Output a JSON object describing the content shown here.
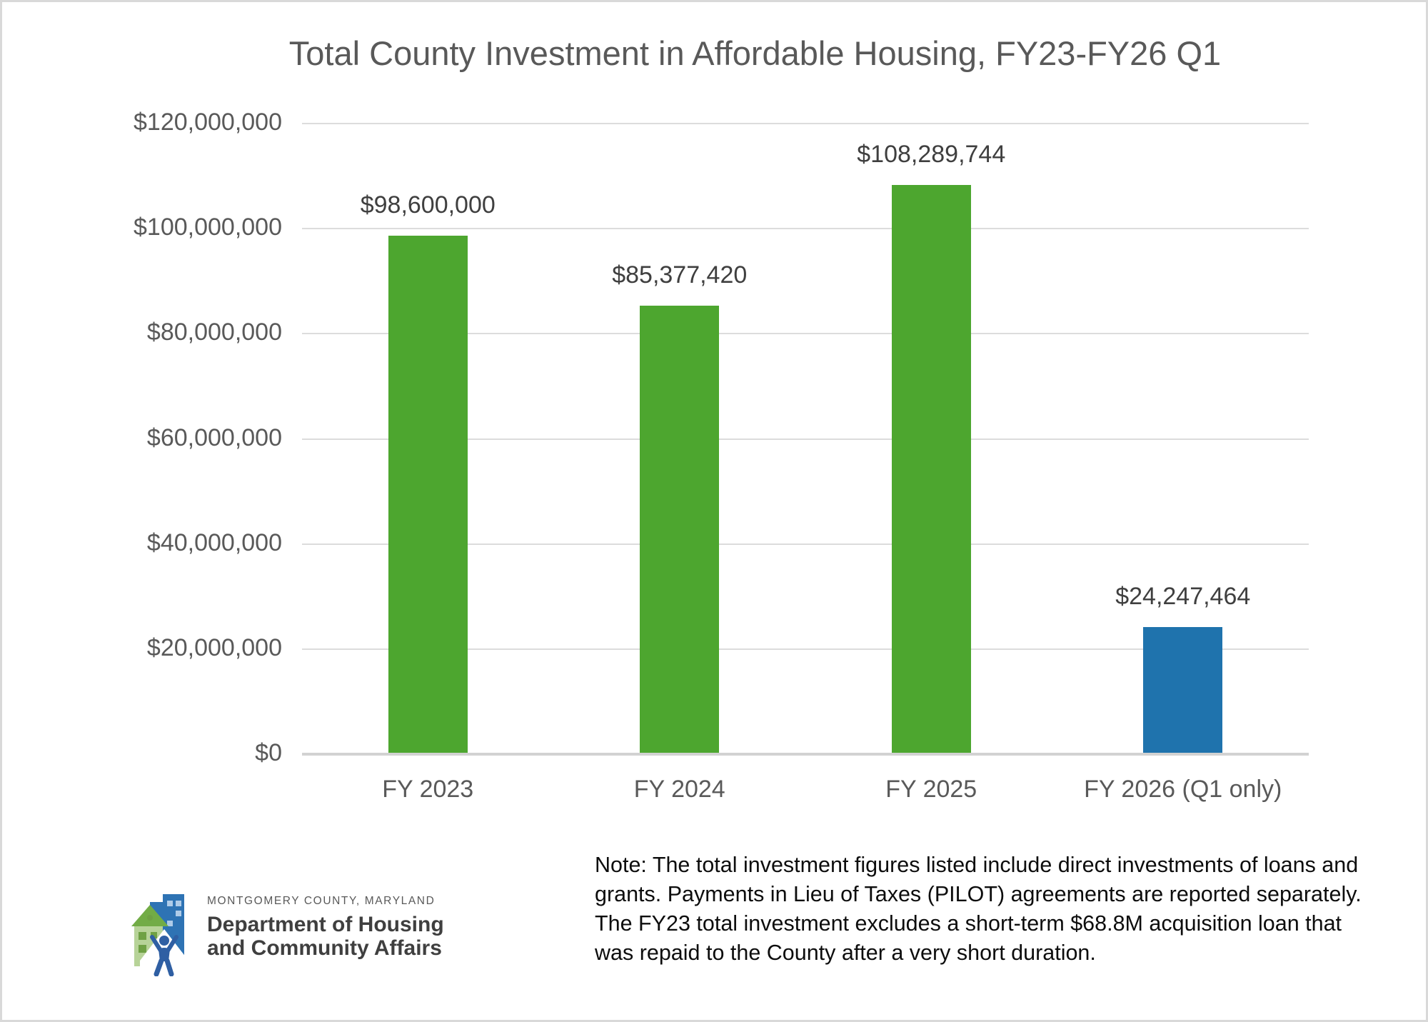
{
  "chart_data": {
    "type": "bar",
    "title": "Total County Investment in Affordable Housing, FY23-FY26 Q1",
    "categories": [
      "FY 2023",
      "FY 2024",
      "FY 2025",
      "FY 2026 (Q1 only)"
    ],
    "values": [
      98600000,
      85377420,
      108289744,
      24247464
    ],
    "data_labels": [
      "$98,600,000",
      "$85,377,420",
      "$108,289,744",
      "$24,247,464"
    ],
    "bar_colors": [
      "#4da62f",
      "#4da62f",
      "#4da62f",
      "#1f73ad"
    ],
    "xlabel": "",
    "ylabel": "",
    "ylim": [
      0,
      120000000
    ],
    "grid": "horizontal",
    "legend": "none",
    "y_ticks": [
      {
        "value": 0,
        "label": "$0"
      },
      {
        "value": 20000000,
        "label": "$20,000,000"
      },
      {
        "value": 40000000,
        "label": "$40,000,000"
      },
      {
        "value": 60000000,
        "label": "$60,000,000"
      },
      {
        "value": 80000000,
        "label": "$80,000,000"
      },
      {
        "value": 100000000,
        "label": "$100,000,000"
      },
      {
        "value": 120000000,
        "label": "$120,000,000"
      }
    ]
  },
  "footer": {
    "logo": {
      "county_line": "MONTGOMERY COUNTY, MARYLAND",
      "dept_line1": "Department of Housing",
      "dept_line2": "and Community Affairs"
    },
    "note": "Note: The total investment figures listed include direct investments of loans and grants. Payments in Lieu of Taxes (PILOT) agreements are reported separately. The FY23 total investment excludes a short-term $68.8M acquisition loan that was repaid to the County after a very short duration."
  },
  "colors": {
    "green_bar": "#4da62f",
    "blue_bar": "#1f73ad",
    "axis_text": "#595959",
    "data_label_text": "#3f3f3f",
    "gridline": "#dcdcdc",
    "frame_border": "#d9d9d9",
    "logo_building_blue": "#2e73b4",
    "logo_building_window": "#aecbe8",
    "logo_house_body_green": "#b7d398",
    "logo_house_roof_green": "#72ac46",
    "logo_house_window_green": "#6fa144",
    "logo_person_navy": "#2f5fa3"
  }
}
